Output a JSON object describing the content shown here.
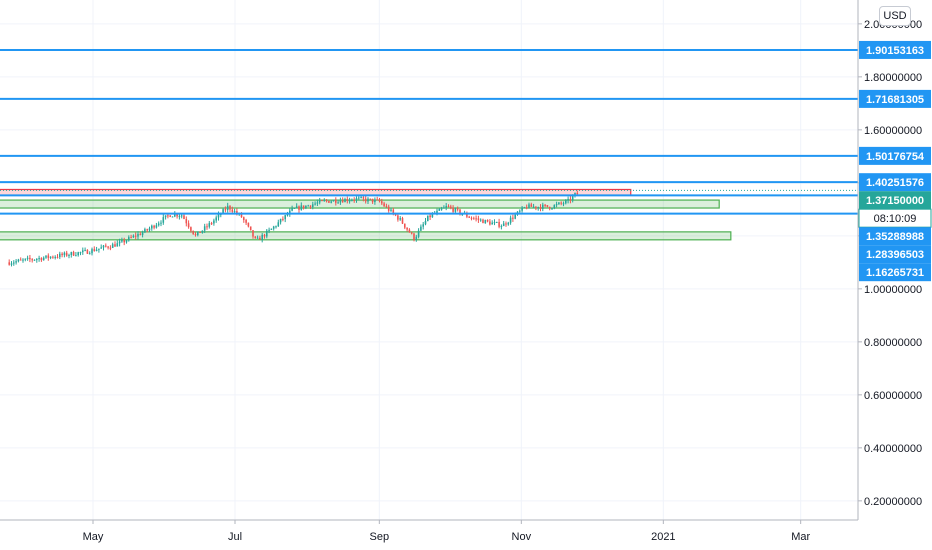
{
  "currency": "USD",
  "chart_data": {
    "type": "candlestick",
    "y_axis": {
      "ticks": [
        "0.20000000",
        "0.40000000",
        "0.60000000",
        "0.80000000",
        "1.00000000",
        "1.20000000",
        "1.40000000",
        "1.60000000",
        "1.80000000",
        "2.00000000"
      ],
      "tick_values": [
        0.2,
        0.4,
        0.6,
        0.8,
        1.0,
        1.2,
        1.4,
        1.6,
        1.8,
        2.0
      ],
      "range": [
        0.12,
        2.05
      ],
      "position": "right"
    },
    "x_axis": {
      "ticks": [
        "May",
        "Jul",
        "Sep",
        "Nov",
        "2021",
        "Mar"
      ],
      "tick_dates": [
        "2020-05",
        "2020-07",
        "2020-09",
        "2020-11",
        "2021-01",
        "2021-03"
      ]
    },
    "grid": true,
    "horizontal_lines": [
      {
        "price": 1.90153163,
        "label": "1.90153163",
        "color": "#2196f3"
      },
      {
        "price": 1.71681305,
        "label": "1.71681305",
        "color": "#2196f3"
      },
      {
        "price": 1.50176754,
        "label": "1.50176754",
        "color": "#2196f3"
      },
      {
        "price": 1.40251576,
        "label": "1.40251576",
        "color": "#2196f3"
      },
      {
        "price": 1.35288988,
        "label": "1.35288988",
        "color": "#2196f3"
      },
      {
        "price": 1.28396503,
        "label": "1.28396503",
        "color": "#2196f3"
      }
    ],
    "last_price": {
      "price": 1.3715,
      "label": "1.37150000",
      "countdown": "08:10:09",
      "color": "#26a69a"
    },
    "extra_label": {
      "price": 1.16265731,
      "label": "1.16265731",
      "color": "#2196f3"
    },
    "zones": [
      {
        "top": 1.375,
        "bottom": 1.353,
        "end": "2020-12-18",
        "color": "#f23645"
      },
      {
        "top": 1.335,
        "bottom": 1.305,
        "end": "2021-01-25",
        "color": "#4caf50"
      },
      {
        "top": 1.215,
        "bottom": 1.185,
        "end": "2021-01-30",
        "color": "#4caf50"
      }
    ],
    "price_path": [
      [
        "2020-03-26",
        1.1
      ],
      [
        "2020-04-12",
        1.12
      ],
      [
        "2020-04-28",
        1.14
      ],
      [
        "2020-05-12",
        1.17
      ],
      [
        "2020-05-24",
        1.22
      ],
      [
        "2020-06-03",
        1.28
      ],
      [
        "2020-06-08",
        1.28
      ],
      [
        "2020-06-14",
        1.2
      ],
      [
        "2020-06-21",
        1.25
      ],
      [
        "2020-06-28",
        1.31
      ],
      [
        "2020-07-04",
        1.27
      ],
      [
        "2020-07-10",
        1.18
      ],
      [
        "2020-07-16",
        1.22
      ],
      [
        "2020-07-26",
        1.3
      ],
      [
        "2020-08-08",
        1.33
      ],
      [
        "2020-08-22",
        1.34
      ],
      [
        "2020-09-01",
        1.33
      ],
      [
        "2020-09-10",
        1.26
      ],
      [
        "2020-09-16",
        1.19
      ],
      [
        "2020-09-22",
        1.27
      ],
      [
        "2020-09-30",
        1.31
      ],
      [
        "2020-10-10",
        1.27
      ],
      [
        "2020-10-18",
        1.25
      ],
      [
        "2020-10-24",
        1.24
      ],
      [
        "2020-11-03",
        1.31
      ],
      [
        "2020-11-14",
        1.31
      ],
      [
        "2020-11-21",
        1.33
      ],
      [
        "2020-11-26",
        1.37
      ]
    ]
  }
}
